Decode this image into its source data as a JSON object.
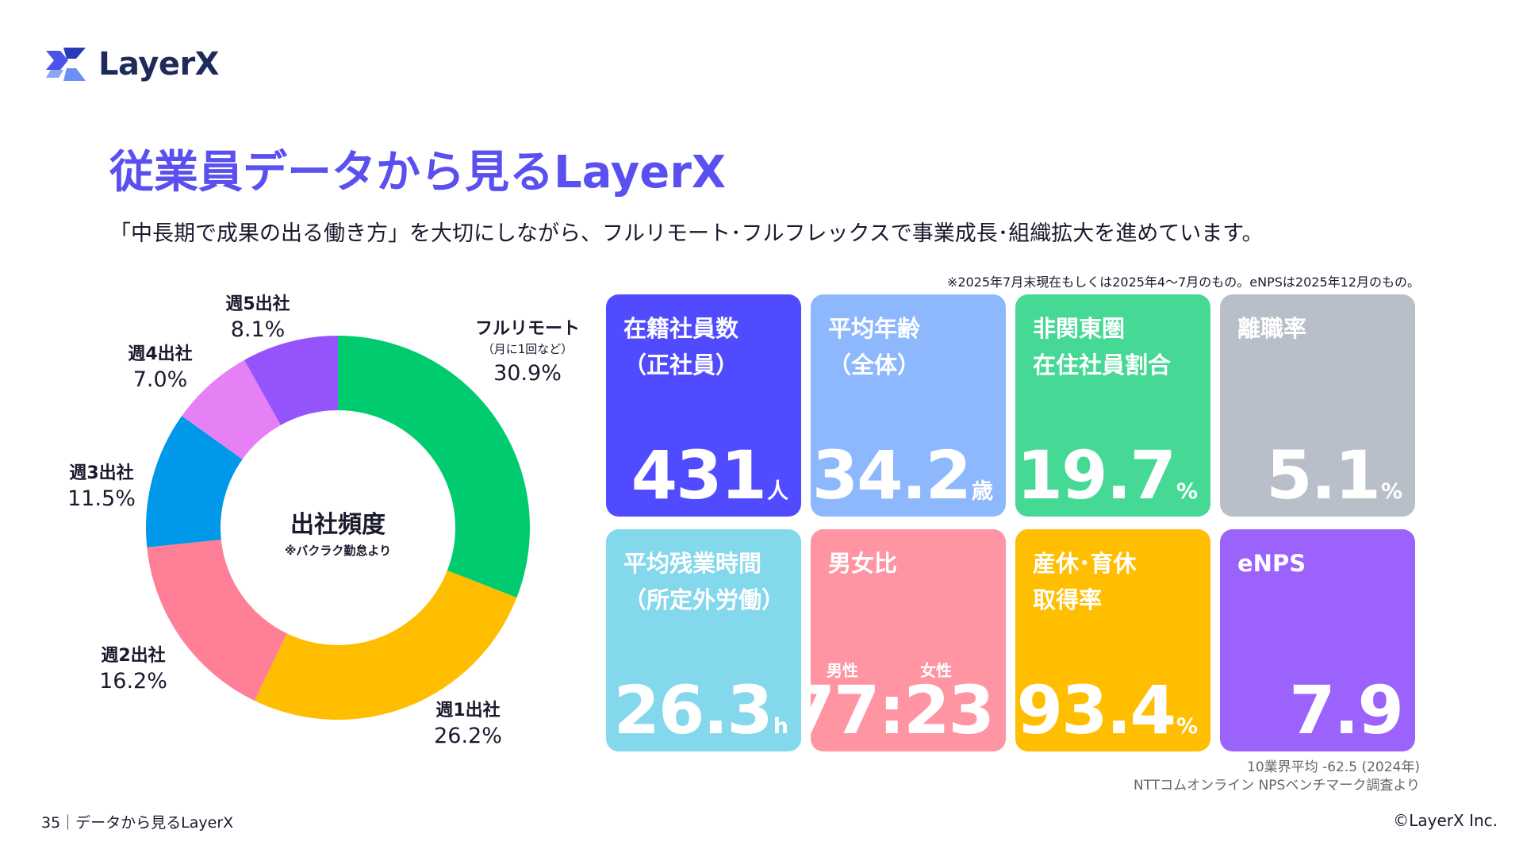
{
  "header": {
    "logo_text": "LayerX"
  },
  "title": "従業員データから見るLayerX",
  "subtitle": "「中長期で成果の出る働き方」を大切にしながら、フルリモート･フルフレックスで事業成長･組織拡大を進めています。",
  "note": "※2025年7月末現在もしくは2025年4〜7月のもの。eNPSは2025年12月のもの。",
  "chart_data": {
    "type": "pie",
    "title": "出社頻度",
    "subtitle": "※バクラク勤怠より",
    "unit": "%",
    "slices": [
      {
        "label": "フルリモート",
        "sublabel": "（月に1回など）",
        "value": 30.9,
        "display": "30.9%",
        "color": "#00cc6f"
      },
      {
        "label": "週1出社",
        "value": 26.2,
        "display": "26.2%",
        "color": "#ffbd00"
      },
      {
        "label": "週2出社",
        "value": 16.2,
        "display": "16.2%",
        "color": "#ff7f96"
      },
      {
        "label": "週3出社",
        "value": 11.5,
        "display": "11.5%",
        "color": "#0098e8"
      },
      {
        "label": "週4出社",
        "value": 7.0,
        "display": "7.0%",
        "color": "#e681f5"
      },
      {
        "label": "週5出社",
        "value": 8.1,
        "display": "8.1%",
        "color": "#9553fc"
      }
    ]
  },
  "cards": [
    {
      "lines": [
        "在籍社員数",
        "（正社員）"
      ],
      "value": "431",
      "unit": "人",
      "color": "#504bff"
    },
    {
      "lines": [
        "平均年齢",
        "（全体）"
      ],
      "value": "34.2",
      "unit": "歳",
      "color": "#8eb8fd"
    },
    {
      "lines": [
        "非関東圏",
        "在住社員割合"
      ],
      "value": "19.7",
      "unit": "%",
      "color": "#46d995"
    },
    {
      "lines": [
        "離職率"
      ],
      "value": "5.1",
      "unit": "%",
      "color": "#b9bfc9"
    },
    {
      "lines": [
        "平均残業時間",
        "（所定外労働）"
      ],
      "value": "26.3",
      "unit": "h",
      "color": "#84d8eb"
    },
    {
      "lines": [
        "男女比"
      ],
      "value": "77:23",
      "unit": "",
      "color": "#ff94a3",
      "male": "男性",
      "female": "女性"
    },
    {
      "lines": [
        "産休･育休",
        "取得率"
      ],
      "value": "93.4",
      "unit": "%",
      "color": "#ffbe00"
    },
    {
      "lines": [
        "eNPS"
      ],
      "value": "7.9",
      "unit": "",
      "color": "#9b62fc"
    }
  ],
  "benchmark": [
    "10業界平均 -62.5 (2024年)",
    "NTTコムオンライン NPSベンチマーク調査より"
  ],
  "footer": {
    "page": "35｜データから見るLayerX",
    "copyright": "©LayerX Inc."
  }
}
